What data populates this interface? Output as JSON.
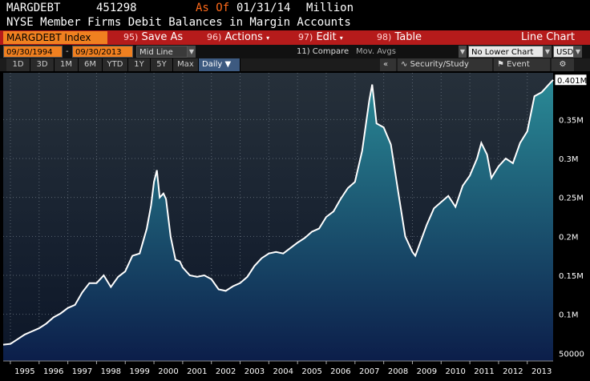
{
  "header": {
    "ticker": "MARGDEBT",
    "value": "451298",
    "as_of_label": "As Of",
    "as_of_date": "01/31/14",
    "units": "Million",
    "description": "NYSE Member Firms Debit Balances in Margin Accounts"
  },
  "toolbar": {
    "security": "MARGDEBT Index",
    "save": {
      "num": "95)",
      "label": "Save As"
    },
    "actions": {
      "num": "96)",
      "label": "Actions"
    },
    "edit": {
      "num": "97)",
      "label": "Edit"
    },
    "table": {
      "num": "98)",
      "label": "Table"
    },
    "chart_type": "Line Chart"
  },
  "settings": {
    "start_date": "09/30/1994",
    "end_date": "09/30/2013",
    "line_mode": "Mid Line",
    "compare": "11) Compare",
    "mov_avgs": "Mov. Avgs",
    "lower_chart": "No Lower Chart",
    "currency": "USD"
  },
  "ranges": {
    "items": [
      "1D",
      "3D",
      "1M",
      "6M",
      "YTD",
      "1Y",
      "5Y",
      "Max"
    ],
    "period": "Daily",
    "collapse": "«",
    "security_study": "Security/Study",
    "event": "Event",
    "gear": "⚙"
  },
  "colors": {
    "line": "#ffffff",
    "fill_top": "#2a8a96",
    "fill_bottom": "#0c1e4a",
    "bg_top": "#26303a",
    "bg_bottom": "#0c1628",
    "accent_red": "#b51b1b",
    "accent_orange": "#f08020"
  },
  "chart_data": {
    "type": "area",
    "title": "",
    "xlabel": "",
    "ylabel": "",
    "y_tick_labels": [
      {
        "value": 50000,
        "label": "50000"
      },
      {
        "value": 100000,
        "label": "0.1M"
      },
      {
        "value": 150000,
        "label": "0.15M"
      },
      {
        "value": 200000,
        "label": "0.2M"
      },
      {
        "value": 250000,
        "label": "0.25M"
      },
      {
        "value": 300000,
        "label": "0.3M"
      },
      {
        "value": 350000,
        "label": "0.35M"
      }
    ],
    "last_value_label": "0.401M",
    "ylim": [
      40000,
      410000
    ],
    "xlim": [
      1994.75,
      2013.9
    ],
    "x_tick_labels": [
      "1995",
      "1996",
      "1997",
      "1998",
      "1999",
      "2000",
      "2001",
      "2002",
      "2003",
      "2004",
      "2005",
      "2006",
      "2007",
      "2008",
      "2009",
      "2010",
      "2011",
      "2012",
      "2013"
    ],
    "grid": true,
    "series": [
      {
        "x": [
          1994.75,
          1995.0,
          1995.25,
          1995.5,
          1995.75,
          1996.0,
          1996.25,
          1996.5,
          1996.75,
          1997.0,
          1997.25,
          1997.5,
          1997.75,
          1998.0,
          1998.25,
          1998.5,
          1998.75,
          1999.0,
          1999.25,
          1999.5,
          1999.75,
          1999.9,
          2000.0,
          2000.1,
          2000.2,
          2000.33,
          2000.42,
          2000.58,
          2000.75,
          2000.9,
          2001.0,
          2001.25,
          2001.5,
          2001.75,
          2002.0,
          2002.25,
          2002.5,
          2002.75,
          2003.0,
          2003.25,
          2003.5,
          2003.75,
          2004.0,
          2004.25,
          2004.5,
          2004.75,
          2005.0,
          2005.25,
          2005.5,
          2005.75,
          2006.0,
          2006.25,
          2006.5,
          2006.75,
          2007.0,
          2007.25,
          2007.5,
          2007.6,
          2007.75,
          2008.0,
          2008.25,
          2008.5,
          2008.75,
          2009.0,
          2009.1,
          2009.25,
          2009.5,
          2009.75,
          2010.0,
          2010.25,
          2010.5,
          2010.75,
          2011.0,
          2011.25,
          2011.4,
          2011.6,
          2011.75,
          2012.0,
          2012.25,
          2012.5,
          2012.75,
          2013.0,
          2013.25,
          2013.5,
          2013.75,
          2013.9
        ],
        "y": [
          61000,
          62000,
          68000,
          74000,
          78000,
          82000,
          88000,
          96000,
          101000,
          108000,
          112000,
          128000,
          140000,
          140000,
          150000,
          135000,
          148000,
          155000,
          175000,
          178000,
          210000,
          240000,
          270000,
          285000,
          250000,
          255000,
          248000,
          200000,
          170000,
          168000,
          160000,
          150000,
          148000,
          150000,
          145000,
          132000,
          130000,
          136000,
          140000,
          148000,
          162000,
          172000,
          178000,
          180000,
          178000,
          185000,
          192000,
          198000,
          206000,
          210000,
          225000,
          232000,
          248000,
          262000,
          270000,
          310000,
          375000,
          395000,
          345000,
          340000,
          318000,
          258000,
          200000,
          180000,
          175000,
          190000,
          215000,
          236000,
          244000,
          252000,
          238000,
          265000,
          278000,
          300000,
          320000,
          305000,
          275000,
          290000,
          300000,
          294000,
          320000,
          335000,
          380000,
          385000,
          395000,
          401000
        ]
      }
    ]
  }
}
